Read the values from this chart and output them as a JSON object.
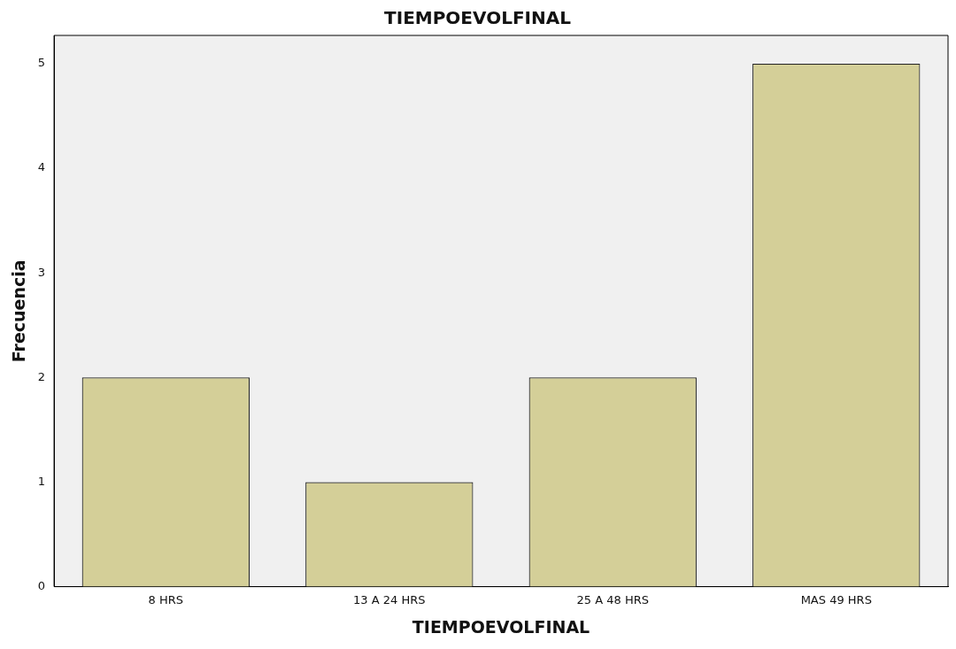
{
  "chart_data": {
    "type": "bar",
    "title": "TIEMPOEVOLFINAL",
    "xlabel": "TIEMPOEVOLFINAL",
    "ylabel": "Frecuencia",
    "categories": [
      "8 HRS",
      "13 A 24 HRS",
      "25 A 48 HRS",
      "MAS 49 HRS"
    ],
    "values": [
      2,
      1,
      2,
      5
    ],
    "color": "#d4cf98",
    "ylim": [
      0,
      5.27
    ],
    "yticks": [
      0,
      1,
      2,
      3,
      4,
      5
    ],
    "grid": false,
    "legend": false
  }
}
